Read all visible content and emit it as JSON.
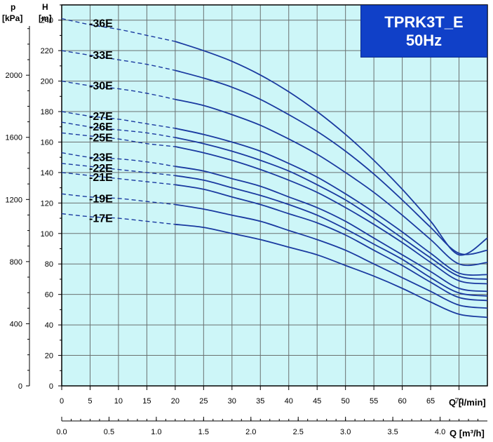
{
  "chart_data": {
    "type": "line",
    "title_line1": "TPRK3T_E",
    "title_line2": "50Hz",
    "pressure_axis": {
      "unit_symbol": "p",
      "unit": "[kPa]",
      "ticks": [
        0,
        400,
        800,
        1200,
        1600,
        2000
      ]
    },
    "head_axis": {
      "unit_symbol": "H",
      "unit": "[m]",
      "ticks": [
        0,
        20,
        40,
        60,
        80,
        100,
        120,
        140,
        160,
        180,
        200,
        220,
        240
      ],
      "ylim": [
        0,
        250
      ]
    },
    "flow_axis_lmin": {
      "label": "Q [l/min]",
      "ticks": [
        0,
        5,
        10,
        15,
        20,
        25,
        30,
        35,
        40,
        45,
        50,
        55,
        60,
        65,
        70
      ],
      "xlim": [
        0,
        75
      ]
    },
    "flow_axis_m3h": {
      "label": "Q [m³/h]",
      "ticks": [
        "0.0",
        "0.5",
        "1.0",
        "1.5",
        "2.0",
        "2.5",
        "3.0",
        "3.5",
        "4.0"
      ]
    },
    "grid": true,
    "dashed_segment_x": [
      0,
      20
    ],
    "series": [
      {
        "name": "-36E",
        "x": [
          0,
          5,
          10,
          15,
          20,
          25,
          30,
          35,
          40,
          45,
          50,
          55,
          60,
          65,
          70,
          75
        ],
        "y": [
          241,
          237,
          234,
          230,
          226,
          220,
          213,
          204,
          193,
          180,
          165,
          148,
          129,
          108,
          86,
          97
        ]
      },
      {
        "name": "-33E",
        "x": [
          0,
          5,
          10,
          15,
          20,
          25,
          30,
          35,
          40,
          45,
          50,
          55,
          60,
          65,
          70,
          75
        ],
        "y": [
          220,
          217,
          214,
          211,
          207,
          202,
          196,
          188,
          178,
          167,
          154,
          139,
          122,
          104,
          87,
          89
        ]
      },
      {
        "name": "-30E",
        "x": [
          0,
          5,
          10,
          15,
          20,
          25,
          30,
          35,
          40,
          45,
          50,
          55,
          60,
          65,
          70,
          75
        ],
        "y": [
          200,
          197,
          195,
          192,
          188,
          184,
          178,
          171,
          162,
          152,
          140,
          127,
          112,
          96,
          80,
          81
        ]
      },
      {
        "name": "-27E",
        "x": [
          0,
          5,
          10,
          15,
          20,
          25,
          30,
          35,
          40,
          45,
          50,
          55,
          60,
          65,
          70,
          75
        ],
        "y": [
          180,
          177,
          175,
          172,
          169,
          165,
          160,
          154,
          146,
          137,
          126,
          114,
          101,
          87,
          74,
          73
        ]
      },
      {
        "name": "-26E",
        "x": [
          0,
          5,
          10,
          15,
          20,
          25,
          30,
          35,
          40,
          45,
          50,
          55,
          60,
          65,
          70,
          75
        ],
        "y": [
          173,
          170,
          168,
          166,
          163,
          159,
          154,
          148,
          141,
          132,
          122,
          110,
          97,
          84,
          72,
          70
        ]
      },
      {
        "name": "-25E",
        "x": [
          0,
          5,
          10,
          15,
          20,
          25,
          30,
          35,
          40,
          45,
          50,
          55,
          60,
          65,
          70,
          75
        ],
        "y": [
          166,
          164,
          162,
          159,
          157,
          153,
          148,
          142,
          135,
          127,
          117,
          106,
          94,
          81,
          69,
          67
        ]
      },
      {
        "name": "-23E",
        "x": [
          0,
          5,
          10,
          15,
          20,
          25,
          30,
          35,
          40,
          45,
          50,
          55,
          60,
          65,
          70,
          75
        ],
        "y": [
          153,
          150,
          149,
          147,
          144,
          141,
          136,
          131,
          124,
          117,
          108,
          97,
          86,
          75,
          64,
          62
        ]
      },
      {
        "name": "-22E",
        "x": [
          0,
          5,
          10,
          15,
          20,
          25,
          30,
          35,
          40,
          45,
          50,
          55,
          60,
          65,
          70,
          75
        ],
        "y": [
          146,
          144,
          142,
          140,
          138,
          135,
          130,
          125,
          119,
          112,
          103,
          93,
          83,
          71,
          61,
          59
        ]
      },
      {
        "name": "-21E",
        "x": [
          0,
          5,
          10,
          15,
          20,
          25,
          30,
          35,
          40,
          45,
          50,
          55,
          60,
          65,
          70,
          75
        ],
        "y": [
          140,
          138,
          136,
          134,
          132,
          129,
          124,
          119,
          113,
          107,
          99,
          89,
          79,
          68,
          58,
          56
        ]
      },
      {
        "name": "-19E",
        "x": [
          0,
          5,
          10,
          15,
          20,
          25,
          30,
          35,
          40,
          45,
          50,
          55,
          60,
          65,
          70,
          75
        ],
        "y": [
          126,
          124,
          123,
          121,
          119,
          116,
          112,
          108,
          102,
          96,
          89,
          80,
          71,
          62,
          53,
          51
        ]
      },
      {
        "name": "-17E",
        "x": [
          0,
          5,
          10,
          15,
          20,
          25,
          30,
          35,
          40,
          45,
          50,
          55,
          60,
          65,
          70,
          75
        ],
        "y": [
          113,
          111,
          110,
          108,
          106,
          104,
          100,
          96,
          91,
          86,
          79,
          72,
          64,
          55,
          47,
          45
        ]
      }
    ]
  }
}
